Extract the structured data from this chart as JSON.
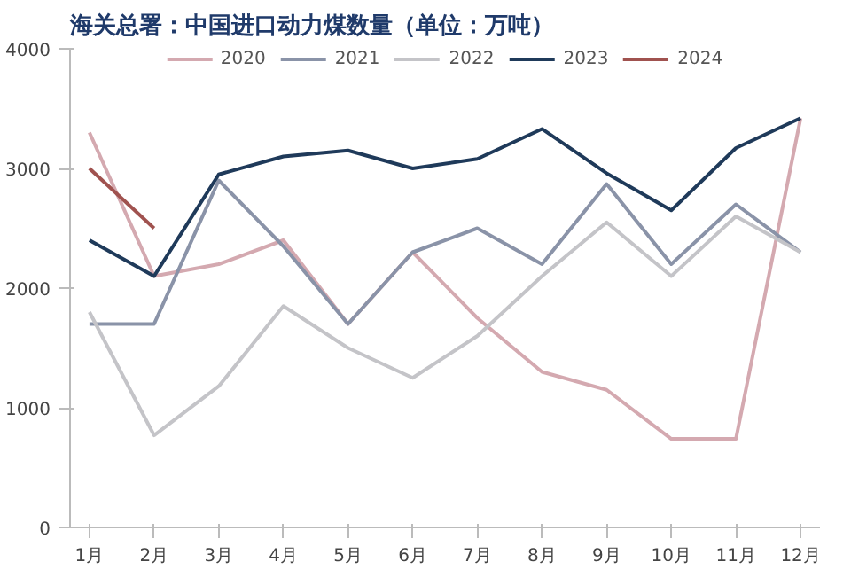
{
  "chart_data": {
    "type": "line",
    "title": "海关总署：中国进口动力煤数量（单位：万吨）",
    "categories": [
      "1月",
      "2月",
      "3月",
      "4月",
      "5月",
      "6月",
      "7月",
      "8月",
      "9月",
      "10月",
      "11月",
      "12月"
    ],
    "series": [
      {
        "name": "2020",
        "color": "#d4a9b0",
        "values": [
          3300,
          2100,
          2200,
          2400,
          1700,
          2300,
          1750,
          1300,
          1150,
          740,
          740,
          3420
        ]
      },
      {
        "name": "2021",
        "color": "#8a93a8",
        "values": [
          1700,
          1700,
          2900,
          2350,
          1700,
          2300,
          2500,
          2200,
          2870,
          2200,
          2700,
          2300
        ]
      },
      {
        "name": "2022",
        "color": "#c4c4c8",
        "values": [
          1800,
          770,
          1180,
          1850,
          1500,
          1250,
          1600,
          2100,
          2550,
          2100,
          2600,
          2300
        ]
      },
      {
        "name": "2023",
        "color": "#1f3a5a",
        "values": [
          2400,
          2100,
          2950,
          3100,
          3150,
          3000,
          3080,
          3330,
          2960,
          2650,
          3170,
          3420
        ]
      },
      {
        "name": "2024",
        "color": "#a0524f",
        "values": [
          3000,
          2500,
          null,
          null,
          null,
          null,
          null,
          null,
          null,
          null,
          null,
          null
        ]
      }
    ],
    "ylim": [
      0,
      4000
    ],
    "yticks": [
      0,
      1000,
      2000,
      3000,
      4000
    ],
    "grid": false,
    "legend": "top",
    "marker": "none",
    "line_style": "solid"
  }
}
